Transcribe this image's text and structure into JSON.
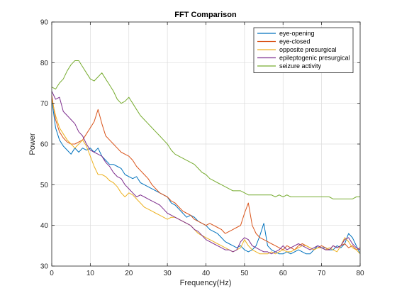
{
  "chart_data": {
    "type": "line",
    "title": "FFT Comparison",
    "xlabel": "Frequency(Hz)",
    "ylabel": "Power",
    "xlim": [
      0,
      80
    ],
    "ylim": [
      30,
      90
    ],
    "xticks": [
      0,
      10,
      20,
      30,
      40,
      50,
      60,
      70,
      80
    ],
    "yticks": [
      30,
      40,
      50,
      60,
      70,
      80,
      90
    ],
    "grid": true,
    "legend_position": "top-right",
    "x": [
      0,
      1,
      2,
      3,
      4,
      5,
      6,
      7,
      8,
      9,
      10,
      11,
      12,
      13,
      14,
      15,
      16,
      17,
      18,
      19,
      20,
      21,
      22,
      23,
      24,
      25,
      26,
      27,
      28,
      29,
      30,
      31,
      32,
      33,
      34,
      35,
      36,
      37,
      38,
      39,
      40,
      41,
      42,
      43,
      44,
      45,
      46,
      47,
      48,
      49,
      50,
      51,
      52,
      53,
      54,
      55,
      56,
      57,
      58,
      59,
      60,
      61,
      62,
      63,
      64,
      65,
      66,
      67,
      68,
      69,
      70,
      71,
      72,
      73,
      74,
      75,
      76,
      77,
      78,
      79,
      80
    ],
    "series": [
      {
        "name": "eye-opening",
        "color": "#0072BD",
        "values": [
          71,
          64,
          61,
          59.5,
          58.5,
          57.5,
          59,
          58,
          59,
          58.5,
          59,
          58,
          59,
          57,
          56,
          55,
          55,
          54.5,
          54,
          52.5,
          52,
          51.5,
          52,
          50.5,
          50,
          49.5,
          49,
          48.5,
          48,
          47.5,
          47,
          45.5,
          45,
          44,
          43,
          42,
          42.5,
          42,
          41,
          40.5,
          40,
          39,
          38.5,
          38,
          37,
          36,
          35.5,
          35,
          34.5,
          35,
          34,
          33.5,
          34,
          35,
          37.5,
          40.5,
          35,
          34,
          33.5,
          33,
          33,
          33.5,
          33,
          33.5,
          34,
          33.5,
          33,
          33,
          34,
          35,
          34.5,
          34.5,
          34,
          34,
          35,
          34.5,
          35.5,
          38,
          37,
          35,
          33
        ]
      },
      {
        "name": "eye-closed",
        "color": "#D95319",
        "values": [
          72,
          66,
          63,
          61.5,
          60.5,
          60,
          60,
          60.5,
          61,
          62.5,
          64,
          65.5,
          68.5,
          65,
          62,
          61,
          60,
          59,
          58,
          57.5,
          57,
          56,
          54.5,
          53.5,
          52.5,
          51.5,
          50,
          49,
          48,
          47.5,
          47,
          46,
          45.5,
          44.5,
          43.5,
          43,
          42.5,
          41.5,
          41,
          40.5,
          40,
          40.5,
          40,
          39.5,
          39,
          38,
          38.5,
          39,
          39.5,
          40,
          43,
          45.5,
          40,
          38,
          37,
          36.5,
          36,
          35.5,
          35,
          34.5,
          34,
          35,
          34.5,
          34,
          35,
          35.5,
          35,
          34.5,
          34,
          34.5,
          35,
          34.5,
          34,
          35,
          34.5,
          35,
          35.5,
          34.5,
          35,
          34,
          34.5
        ]
      },
      {
        "name": "opposite presurgical",
        "color": "#EDB120",
        "values": [
          71,
          67,
          64,
          62.5,
          61,
          60,
          59,
          60,
          61,
          59.5,
          57,
          54.5,
          52.5,
          52.5,
          52,
          51,
          50.5,
          49.5,
          48,
          47,
          48,
          47.5,
          46.5,
          45.5,
          44.5,
          44,
          43.5,
          43,
          42.5,
          42,
          41.5,
          42,
          42,
          41.5,
          41,
          40.5,
          40,
          39,
          38,
          37.5,
          37,
          36.5,
          36,
          35.5,
          35,
          34.5,
          34,
          33.5,
          34,
          34.5,
          36.5,
          35,
          34,
          33.5,
          33,
          33,
          33,
          33.5,
          33,
          33.5,
          34,
          33.5,
          33.5,
          34,
          34.5,
          35,
          35,
          34.5,
          34,
          34.5,
          34.5,
          34,
          34.5,
          34,
          33.5,
          35,
          37,
          36,
          34.5,
          34,
          33
        ]
      },
      {
        "name": "epileptogenic presurgical",
        "color": "#7E2F8E",
        "values": [
          73,
          71,
          71.5,
          68,
          67,
          66,
          65,
          63,
          62,
          60,
          58.5,
          58,
          57.5,
          57,
          55.5,
          54.5,
          53,
          52,
          51.5,
          50,
          49,
          48,
          47,
          47.5,
          47,
          46.5,
          46,
          45.5,
          45,
          44,
          43,
          42.5,
          42,
          41.5,
          41,
          40.5,
          40,
          39,
          38.5,
          37.5,
          36.5,
          36,
          35.5,
          35,
          34.5,
          34,
          34,
          33.5,
          34,
          36,
          37,
          36.5,
          35,
          34.5,
          34,
          33.5,
          33.5,
          33,
          33.5,
          34,
          35,
          34,
          34.5,
          35,
          35.5,
          35,
          34.5,
          34,
          34.5,
          35,
          34.5,
          34,
          34,
          35,
          34.5,
          35,
          36.5,
          37,
          35.5,
          34.5,
          34
        ]
      },
      {
        "name": "seizure activity",
        "color": "#77AC30",
        "values": [
          74,
          73.5,
          75,
          76,
          78,
          79.5,
          80.5,
          80.5,
          79,
          77.5,
          76,
          75.5,
          76.5,
          77.5,
          76,
          74.5,
          73,
          71,
          70,
          70.5,
          71.5,
          70,
          68.5,
          67,
          66,
          65,
          64,
          63,
          62,
          61,
          60,
          58.5,
          57.5,
          57,
          56.5,
          56,
          55.5,
          55,
          54,
          53,
          52.5,
          51.5,
          51,
          50.5,
          50,
          49.5,
          49,
          48.5,
          48.5,
          48.5,
          48,
          47.5,
          47.5,
          47.5,
          47.5,
          47.5,
          47.5,
          47.5,
          47,
          47.5,
          47,
          47.5,
          47,
          47,
          47,
          47,
          47,
          47,
          47,
          47,
          47,
          47,
          47,
          46.5,
          46.5,
          46.5,
          46.5,
          46.5,
          46.5,
          47,
          47
        ]
      }
    ]
  }
}
